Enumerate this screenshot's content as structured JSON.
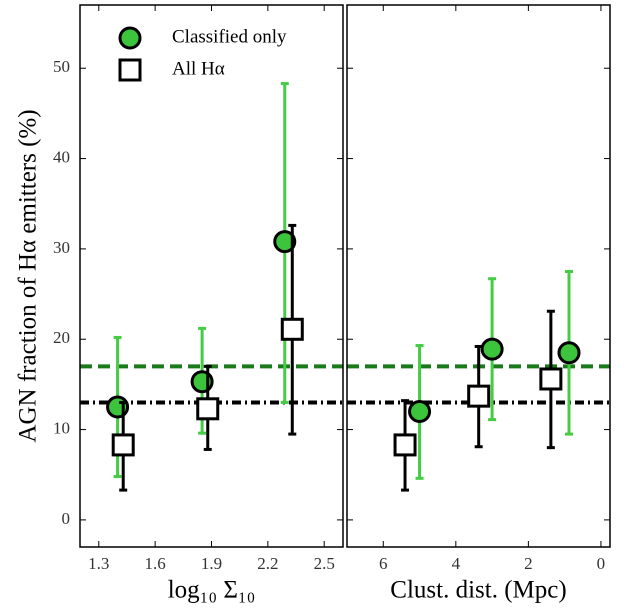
{
  "chart_data": [
    {
      "type": "errorbar",
      "ylabel": "AGN fraction of Hα emitters (%)",
      "xlabel": "log₁₀ Σ₁₀",
      "xlim": [
        1.2,
        2.6
      ],
      "xticks": [
        1.3,
        1.6,
        1.9,
        2.2,
        2.5
      ],
      "ylim": [
        -3,
        57
      ],
      "yticks": [
        0,
        10,
        20,
        30,
        40,
        50
      ],
      "legend": "upper left",
      "series": [
        {
          "name": "Classified only",
          "marker": "circle",
          "color": "#3cc43c",
          "errcolor": "#44cc44",
          "x": [
            1.4,
            1.85,
            2.29
          ],
          "values": [
            12.5,
            15.3,
            30.8
          ],
          "lower": [
            4.8,
            9.6,
            13
          ],
          "upper": [
            20.2,
            21.2,
            48.3
          ]
        },
        {
          "name": "All Hα",
          "marker": "square",
          "color": "#ffffff",
          "errcolor": "#000000",
          "x": [
            1.43,
            1.88,
            2.33
          ],
          "values": [
            8.3,
            12.3,
            21.1
          ],
          "lower": [
            3.3,
            7.8,
            9.5
          ],
          "upper": [
            13,
            17,
            32.6
          ]
        }
      ],
      "hlines": [
        {
          "value": 17,
          "color": "#1a7a1a",
          "style": "dashed"
        },
        {
          "value": 13,
          "color": "#000000",
          "style": "dashdot"
        }
      ]
    },
    {
      "type": "errorbar",
      "xlabel": "Clust. dist. (Mpc)",
      "xlim": [
        7,
        -0.25
      ],
      "xticks": [
        6,
        4,
        2,
        0
      ],
      "ylim": [
        -3,
        57
      ],
      "yticks": [
        0,
        10,
        20,
        30,
        40,
        50
      ],
      "series": [
        {
          "marker": "circle",
          "color": "#3cc43c",
          "errcolor": "#44cc44",
          "x": [
            5.0,
            3.0,
            0.88
          ],
          "values": [
            12.0,
            18.9,
            18.5
          ],
          "lower": [
            4.6,
            11.1,
            9.5
          ],
          "upper": [
            19.3,
            26.7,
            27.5
          ]
        },
        {
          "marker": "square",
          "color": "#ffffff",
          "errcolor": "#000000",
          "x": [
            5.4,
            3.37,
            1.38
          ],
          "values": [
            8.3,
            13.7,
            15.6
          ],
          "lower": [
            3.3,
            8.1,
            8.0
          ],
          "upper": [
            13.2,
            19.2,
            23.1
          ]
        }
      ],
      "hlines": [
        {
          "value": 17,
          "color": "#1a7a1a",
          "style": "dashed"
        },
        {
          "value": 13,
          "color": "#000000",
          "style": "dashdot"
        }
      ]
    }
  ]
}
